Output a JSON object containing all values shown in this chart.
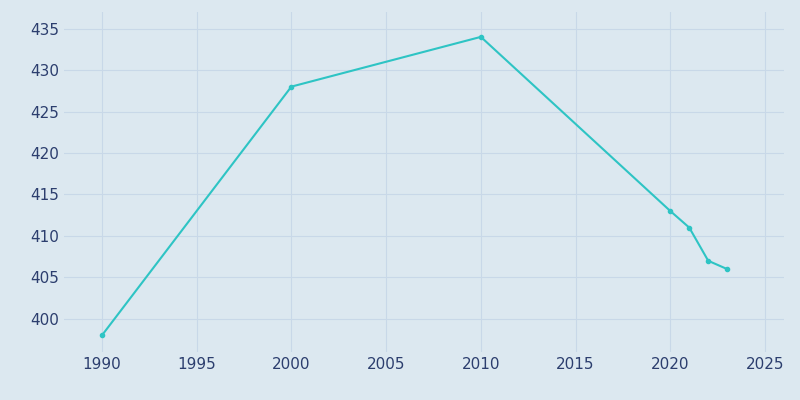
{
  "years": [
    1990,
    2000,
    2010,
    2020,
    2021,
    2022,
    2023
  ],
  "population": [
    398,
    428,
    434,
    413,
    411,
    407,
    406
  ],
  "line_color": "#2ec4c4",
  "marker": "o",
  "marker_size": 3,
  "line_width": 1.5,
  "background_color": "#dce8f0",
  "grid_color": "#c8d8e8",
  "xlim": [
    1988,
    2026
  ],
  "ylim": [
    396,
    437
  ],
  "xticks": [
    1990,
    1995,
    2000,
    2005,
    2010,
    2015,
    2020,
    2025
  ],
  "yticks": [
    400,
    405,
    410,
    415,
    420,
    425,
    430,
    435
  ],
  "tick_color": "#2c3e6e",
  "tick_fontsize": 11
}
